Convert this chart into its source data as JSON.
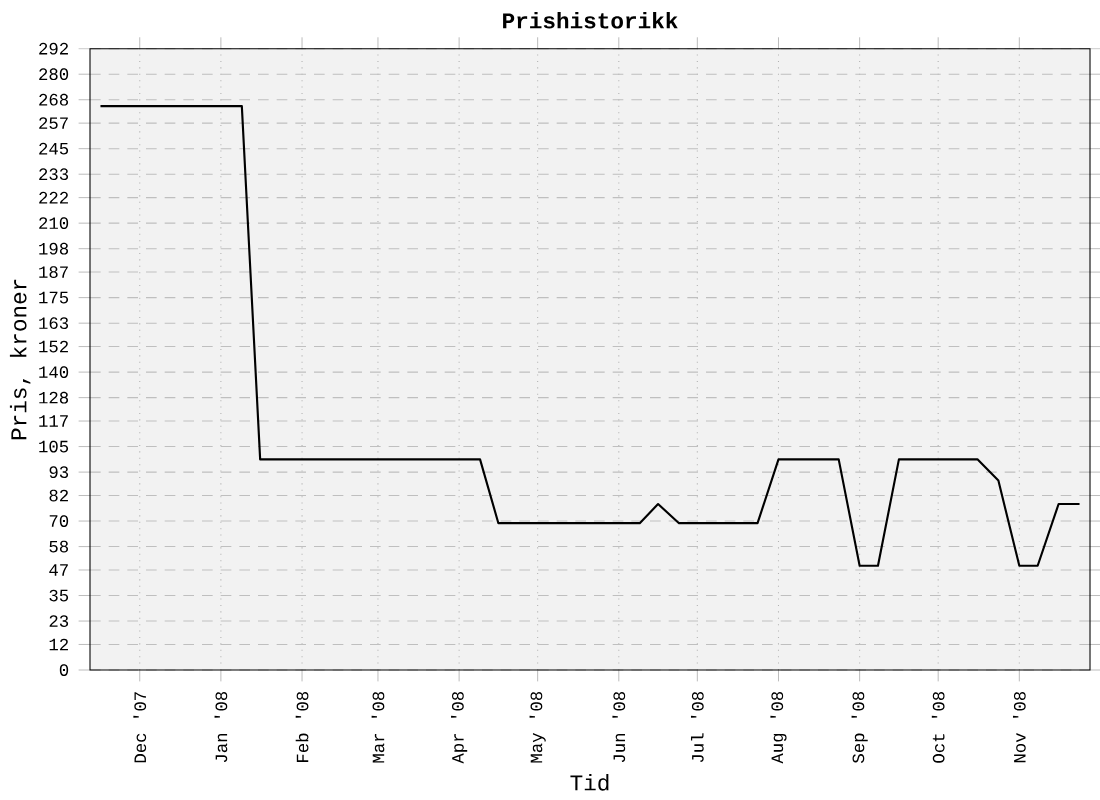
{
  "chart_data": {
    "type": "line",
    "title": "Prishistorikk",
    "xlabel": "Tid",
    "ylabel": "Pris, kroner",
    "x": [
      "2007-11-16",
      "2008-01-09",
      "2008-01-16",
      "2008-04-09",
      "2008-04-16",
      "2008-06-09",
      "2008-06-16",
      "2008-06-24",
      "2008-07-24",
      "2008-08-01",
      "2008-08-24",
      "2008-09-01",
      "2008-09-08",
      "2008-09-16",
      "2008-10-16",
      "2008-10-24",
      "2008-11-01",
      "2008-11-08",
      "2008-11-16",
      "2008-11-24"
    ],
    "series": [
      {
        "color": "#000000",
        "values": [
          265,
          265,
          99,
          99,
          69,
          69,
          78,
          69,
          69,
          99,
          99,
          49,
          49,
          99,
          99,
          89,
          49,
          49,
          78,
          78
        ]
      }
    ],
    "xlim": [
      "2007-11-12",
      "2008-11-28"
    ],
    "xticks": [
      {
        "value": "2007-12-01",
        "label": "Dec '07"
      },
      {
        "value": "2008-01-01",
        "label": "Jan '08"
      },
      {
        "value": "2008-02-01",
        "label": "Feb '08"
      },
      {
        "value": "2008-03-01",
        "label": "Mar '08"
      },
      {
        "value": "2008-04-01",
        "label": "Apr '08"
      },
      {
        "value": "2008-05-01",
        "label": "May '08"
      },
      {
        "value": "2008-06-01",
        "label": "Jun '08"
      },
      {
        "value": "2008-07-01",
        "label": "Jul '08"
      },
      {
        "value": "2008-08-01",
        "label": "Aug '08"
      },
      {
        "value": "2008-09-01",
        "label": "Sep '08"
      },
      {
        "value": "2008-10-01",
        "label": "Oct '08"
      },
      {
        "value": "2008-11-01",
        "label": "Nov '08"
      }
    ],
    "ylim": [
      0,
      292
    ],
    "yticks": [
      0,
      12,
      23,
      35,
      47,
      58,
      70,
      82,
      93,
      105,
      117,
      128,
      140,
      152,
      163,
      175,
      187,
      198,
      210,
      222,
      233,
      245,
      257,
      268,
      280,
      292
    ],
    "grid": true,
    "marker": "none",
    "line_style": "solid"
  }
}
